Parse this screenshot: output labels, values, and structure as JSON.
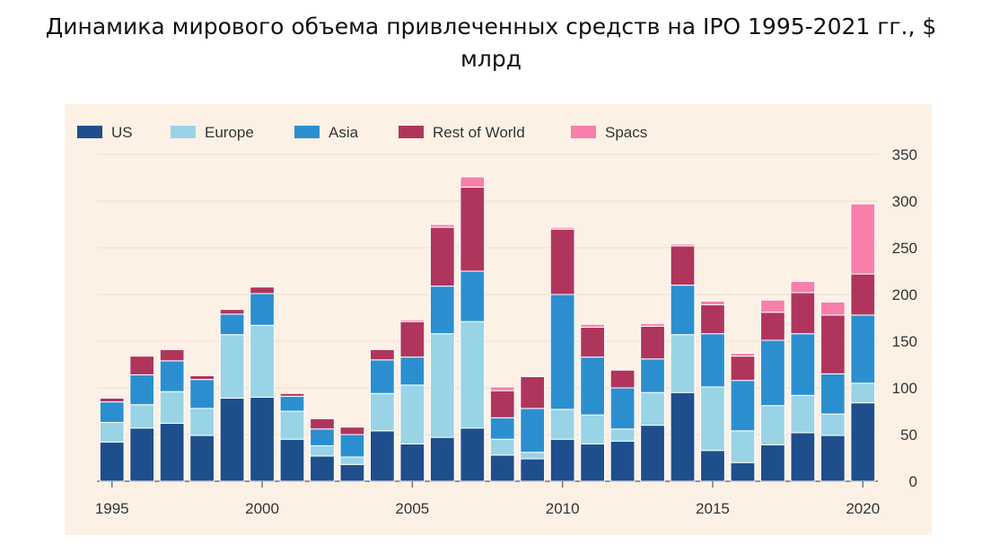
{
  "title": {
    "line1": "Динамика мирового объема привлеченных средств на IPO 1995-2021 гг., $",
    "line2": "млрд"
  },
  "chart_data": {
    "type": "bar",
    "stacked": true,
    "title": "Динамика мирового объема привлеченных средств на IPO 1995-2021 гг., $ млрд",
    "legend_position": "top-left",
    "grid": true,
    "ylim": [
      0,
      350
    ],
    "yticks": [
      0,
      50,
      100,
      150,
      200,
      250,
      300,
      350
    ],
    "y_axis_side": "right",
    "xticks": [
      1995,
      2000,
      2005,
      2010,
      2015,
      2020
    ],
    "categories": [
      1995,
      1996,
      1997,
      1998,
      1999,
      2000,
      2001,
      2002,
      2003,
      2004,
      2005,
      2006,
      2007,
      2008,
      2009,
      2010,
      2011,
      2012,
      2013,
      2014,
      2015,
      2016,
      2017,
      2018,
      2019,
      2020
    ],
    "series": [
      {
        "name": "US",
        "color": "#1f4e8c",
        "values": [
          42,
          57,
          62,
          49,
          89,
          90,
          45,
          27,
          18,
          54,
          40,
          47,
          57,
          28,
          24,
          45,
          40,
          43,
          60,
          95,
          33,
          20,
          39,
          52,
          49,
          84
        ]
      },
      {
        "name": "Europe",
        "color": "#99d3e6",
        "values": [
          21,
          25,
          34,
          29,
          68,
          77,
          30,
          11,
          8,
          40,
          63,
          111,
          114,
          17,
          7,
          32,
          31,
          13,
          35,
          62,
          68,
          34,
          42,
          40,
          23,
          21
        ]
      },
      {
        "name": "Asia",
        "color": "#2b8fcf",
        "values": [
          22,
          32,
          33,
          31,
          22,
          34,
          16,
          18,
          24,
          36,
          30,
          51,
          54,
          23,
          47,
          123,
          62,
          44,
          36,
          53,
          57,
          54,
          70,
          66,
          43,
          73
        ]
      },
      {
        "name": "Rest of World",
        "color": "#b0355d",
        "values": [
          4,
          20,
          12,
          4,
          5,
          7,
          3,
          11,
          8,
          11,
          38,
          63,
          90,
          29,
          34,
          70,
          32,
          19,
          35,
          42,
          31,
          26,
          30,
          44,
          63,
          44
        ]
      },
      {
        "name": "Spacs",
        "color": "#f77fa9",
        "values": [
          0,
          0,
          0,
          0,
          0,
          0,
          0,
          0,
          0,
          0,
          2,
          3,
          11,
          4,
          0,
          2,
          3,
          0,
          3,
          2,
          4,
          3,
          13,
          12,
          14,
          75
        ]
      }
    ]
  }
}
